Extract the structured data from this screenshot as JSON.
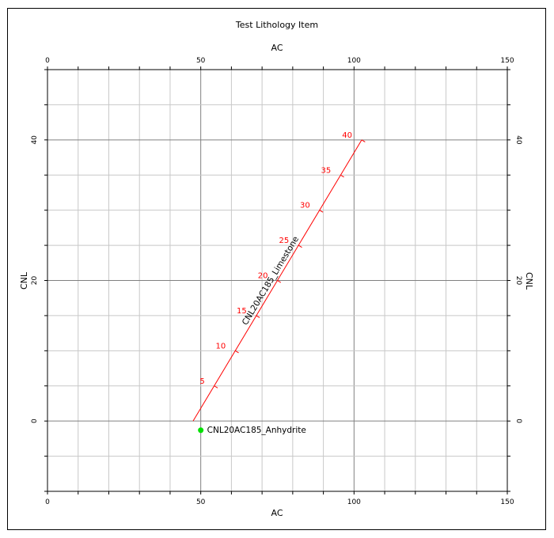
{
  "chart_data": {
    "type": "scatter",
    "title": "Test Lithology Item",
    "xlabel": "AC",
    "ylabel": "CNL",
    "xlim": [
      0,
      150
    ],
    "ylim": [
      -10,
      50
    ],
    "x_ticks": [
      "0",
      "50",
      "100",
      "150"
    ],
    "y_ticks": [
      "0",
      "20",
      "40"
    ],
    "grid": true,
    "series": [
      {
        "name": "CNL20AC185_Limestone",
        "kind": "line",
        "color": "#ff0000",
        "x": [
          47.5,
          102.5
        ],
        "y": [
          0,
          40
        ],
        "marks": [
          {
            "label": "5",
            "x": 54.4,
            "y": 5
          },
          {
            "label": "10",
            "x": 61.25,
            "y": 10
          },
          {
            "label": "15",
            "x": 68.1,
            "y": 15
          },
          {
            "label": "20",
            "x": 75.0,
            "y": 20
          },
          {
            "label": "25",
            "x": 81.9,
            "y": 25
          },
          {
            "label": "30",
            "x": 88.75,
            "y": 30
          },
          {
            "label": "35",
            "x": 95.6,
            "y": 35
          },
          {
            "label": "40",
            "x": 102.5,
            "y": 40
          }
        ]
      },
      {
        "name": "CNL20AC185_Anhydrite",
        "kind": "point",
        "color": "#00e000",
        "x": [
          50
        ],
        "y": [
          -1.3
        ]
      }
    ]
  }
}
